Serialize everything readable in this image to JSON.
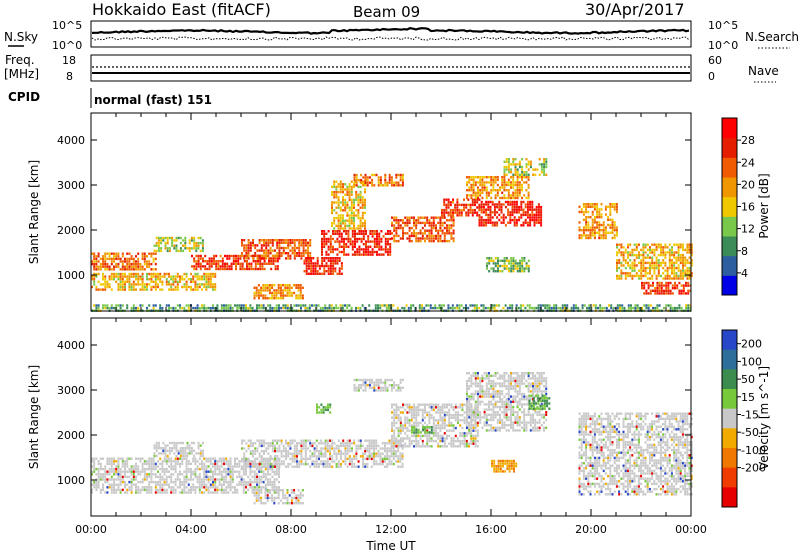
{
  "header": {
    "station": "Hokkaido East (fitACF)",
    "beam": "Beam 09",
    "date": "30/Apr/2017"
  },
  "noise_panel": {
    "left_label": "N.Sky",
    "left_ticks": [
      "10^5",
      "10^0"
    ],
    "right_label": "N.Search",
    "right_ticks": [
      "10^5",
      "10^0"
    ]
  },
  "freq_panel": {
    "left_label": "Freq.",
    "left_unit": "[MHz]",
    "left_ticks": [
      "18",
      "8"
    ],
    "right_label": "Nave",
    "right_ticks": [
      "60",
      "0"
    ]
  },
  "cpid": {
    "label": "CPID",
    "mode_text": "normal (fast) 151"
  },
  "colors": {
    "power_scale": [
      "#0000e6",
      "#2d5fa0",
      "#3c8c5a",
      "#7ac84b",
      "#f0c800",
      "#f09600",
      "#f05a00",
      "#e61e00",
      "#ff0000"
    ],
    "velocity_scale": [
      "#2846c8",
      "#2d6e9b",
      "#3c8c50",
      "#78c83c",
      "#c8c8c8",
      "#f0aa00",
      "#f07800",
      "#f03c00",
      "#e60000"
    ]
  },
  "chart_data": [
    {
      "type": "heatmap",
      "panel": "power",
      "ylabel": "Slant Range [km]",
      "y_ticks": [
        1000,
        2000,
        3000,
        4000
      ],
      "ylim": [
        200,
        4600
      ],
      "xlim": [
        0,
        24
      ],
      "colorbar_label": "Power [dB]",
      "colorbar_ticks": [
        4,
        8,
        12,
        16,
        20,
        24,
        28
      ],
      "colorbar_range": [
        0,
        32
      ],
      "bands": [
        {
          "t0": 0.0,
          "t1": 2.6,
          "r0": 1100,
          "r1": 1500,
          "level": 22
        },
        {
          "t0": 0.0,
          "t1": 5.0,
          "r0": 700,
          "r1": 1050,
          "level": 18
        },
        {
          "t0": 2.5,
          "t1": 4.5,
          "r0": 1550,
          "r1": 1850,
          "level": 14
        },
        {
          "t0": 4.0,
          "t1": 7.5,
          "r0": 1150,
          "r1": 1450,
          "level": 26
        },
        {
          "t0": 6.0,
          "t1": 8.8,
          "r0": 1350,
          "r1": 1800,
          "level": 24
        },
        {
          "t0": 6.5,
          "t1": 8.5,
          "r0": 500,
          "r1": 800,
          "level": 20
        },
        {
          "t0": 8.5,
          "t1": 10.0,
          "r0": 1050,
          "r1": 1400,
          "level": 28
        },
        {
          "t0": 9.2,
          "t1": 12.0,
          "r0": 1450,
          "r1": 2000,
          "level": 28
        },
        {
          "t0": 9.6,
          "t1": 11.0,
          "r0": 2050,
          "r1": 3100,
          "level": 18
        },
        {
          "t0": 10.5,
          "t1": 12.5,
          "r0": 3000,
          "r1": 3250,
          "level": 22
        },
        {
          "t0": 12.0,
          "t1": 14.5,
          "r0": 1750,
          "r1": 2300,
          "level": 24
        },
        {
          "t0": 14.0,
          "t1": 15.5,
          "r0": 2300,
          "r1": 2700,
          "level": 26
        },
        {
          "t0": 15.0,
          "t1": 17.5,
          "r0": 2700,
          "r1": 3200,
          "level": 20
        },
        {
          "t0": 15.5,
          "t1": 18.0,
          "r0": 2100,
          "r1": 2650,
          "level": 28
        },
        {
          "t0": 16.5,
          "t1": 18.2,
          "r0": 3200,
          "r1": 3600,
          "level": 14
        },
        {
          "t0": 15.8,
          "t1": 17.5,
          "r0": 1100,
          "r1": 1400,
          "level": 12
        },
        {
          "t0": 19.5,
          "t1": 21.0,
          "r0": 1800,
          "r1": 2600,
          "level": 20
        },
        {
          "t0": 21.0,
          "t1": 24.0,
          "r0": 900,
          "r1": 1700,
          "level": 18
        },
        {
          "t0": 22.0,
          "t1": 24.0,
          "r0": 600,
          "r1": 850,
          "level": 26
        },
        {
          "t0": 0.0,
          "t1": 24.0,
          "r0": 200,
          "r1": 350,
          "level": 10
        }
      ]
    },
    {
      "type": "heatmap",
      "panel": "velocity",
      "ylabel": "Slant Range [km]",
      "y_ticks": [
        1000,
        2000,
        3000,
        4000
      ],
      "ylim": [
        200,
        4600
      ],
      "xlim": [
        0,
        24
      ],
      "xlabel": "Time UT",
      "x_ticks": [
        "00:00",
        "04:00",
        "08:00",
        "12:00",
        "16:00",
        "20:00",
        "00:00"
      ],
      "colorbar_label": "Velocity [m s^-1]",
      "colorbar_ticks": [
        200,
        100,
        50,
        15,
        -15,
        -50,
        -100,
        -200
      ],
      "bands": [
        {
          "t0": 0.0,
          "t1": 7.5,
          "r0": 700,
          "r1": 1500,
          "vel": 0
        },
        {
          "t0": 2.5,
          "t1": 4.5,
          "r0": 1550,
          "r1": 1850,
          "vel": 0
        },
        {
          "t0": 6.0,
          "t1": 12.5,
          "r0": 1300,
          "r1": 1900,
          "vel": 0
        },
        {
          "t0": 10.5,
          "t1": 12.5,
          "r0": 3000,
          "r1": 3250,
          "vel": 0
        },
        {
          "t0": 12.0,
          "t1": 15.5,
          "r0": 1750,
          "r1": 2700,
          "vel": 0
        },
        {
          "t0": 15.0,
          "t1": 18.2,
          "r0": 2100,
          "r1": 3400,
          "vel": 0
        },
        {
          "t0": 19.5,
          "t1": 24.0,
          "r0": 700,
          "r1": 2500,
          "vel": 0
        },
        {
          "t0": 6.5,
          "t1": 8.5,
          "r0": 500,
          "r1": 800,
          "vel": 0
        },
        {
          "t0": 16.0,
          "t1": 17.0,
          "r0": 1200,
          "r1": 1450,
          "vel": -60
        },
        {
          "t0": 12.8,
          "t1": 13.6,
          "r0": 2050,
          "r1": 2200,
          "vel": 40
        },
        {
          "t0": 9.0,
          "t1": 9.6,
          "r0": 2500,
          "r1": 2700,
          "vel": 30
        },
        {
          "t0": 17.5,
          "t1": 18.3,
          "r0": 2600,
          "r1": 2900,
          "vel": 60
        }
      ]
    }
  ]
}
